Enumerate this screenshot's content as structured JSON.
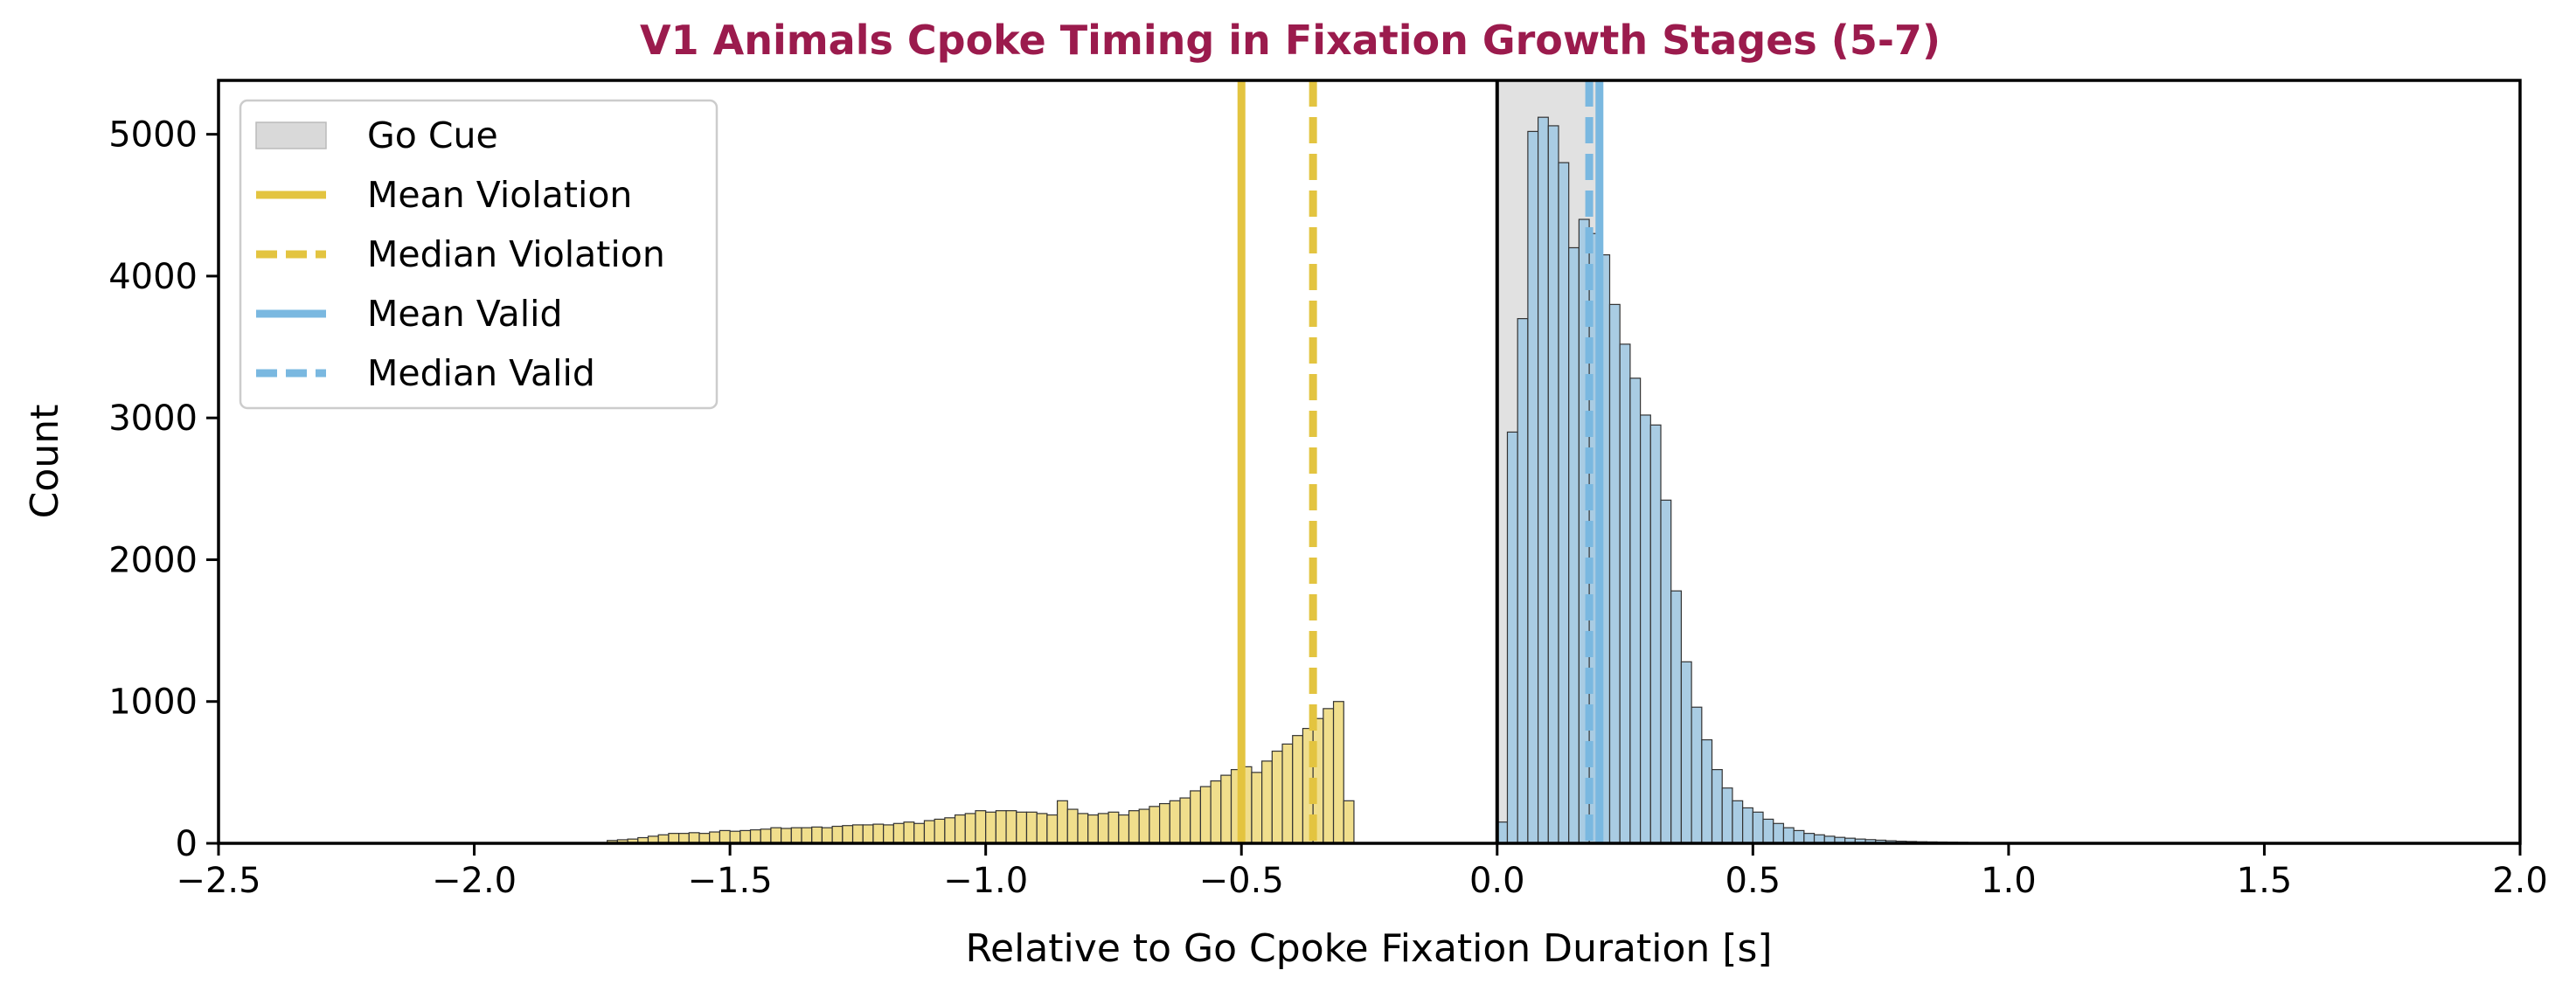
{
  "chart_data": {
    "type": "bar",
    "title": "V1 Animals Cpoke Timing in Fixation Growth Stages (5-7)",
    "xlabel": "Relative to Go Cpoke Fixation Duration [s]",
    "ylabel": "Count",
    "xlim": [
      -2.5,
      2.0
    ],
    "ylim": [
      0,
      5380
    ],
    "xticks": [
      -2.5,
      -2.0,
      -1.5,
      -1.0,
      -0.5,
      0.0,
      0.5,
      1.0,
      1.5,
      2.0
    ],
    "xtick_labels": [
      "−2.5",
      "−2.0",
      "−1.5",
      "−1.0",
      "−0.5",
      "0.0",
      "0.5",
      "1.0",
      "1.5",
      "2.0"
    ],
    "yticks": [
      0,
      1000,
      2000,
      3000,
      4000,
      5000
    ],
    "ytick_labels": [
      "0",
      "1000",
      "2000",
      "3000",
      "4000",
      "5000"
    ],
    "bin_width": 0.02,
    "go_cue": {
      "name": "Go Cue",
      "x0": 0.0,
      "x1": 0.2,
      "color": "#d9d9d9"
    },
    "zero_line": {
      "x": 0.0,
      "color": "#000000"
    },
    "series": [
      {
        "name": "Violation",
        "color": "#f0de8c",
        "bin_start": -1.74,
        "values": [
          20,
          25,
          30,
          40,
          50,
          60,
          70,
          70,
          75,
          70,
          80,
          90,
          85,
          90,
          95,
          100,
          110,
          105,
          110,
          110,
          115,
          110,
          120,
          125,
          130,
          130,
          135,
          130,
          140,
          150,
          140,
          160,
          170,
          180,
          200,
          210,
          230,
          220,
          230,
          230,
          220,
          220,
          210,
          200,
          300,
          240,
          210,
          200,
          210,
          220,
          200,
          230,
          240,
          260,
          280,
          300,
          320,
          370,
          400,
          440,
          480,
          520,
          540,
          500,
          580,
          650,
          700,
          760,
          810,
          880,
          950,
          1000,
          300
        ]
      },
      {
        "name": "Valid",
        "color": "#a9cce3",
        "bin_start": 0.0,
        "values": [
          150,
          2900,
          3700,
          5020,
          5120,
          5060,
          4800,
          4200,
          4400,
          4300,
          4150,
          3800,
          3520,
          3280,
          3020,
          2950,
          2420,
          1780,
          1280,
          960,
          730,
          520,
          390,
          300,
          250,
          220,
          170,
          140,
          110,
          90,
          70,
          60,
          50,
          42,
          36,
          30,
          26,
          22,
          18,
          15,
          13,
          11,
          10,
          9,
          8,
          7,
          6,
          5,
          5,
          4,
          4,
          3,
          3,
          3,
          2,
          2,
          2,
          2,
          2,
          2,
          2,
          2,
          2,
          2,
          1,
          1,
          1,
          1,
          1,
          1,
          1,
          1,
          1,
          1,
          1,
          1,
          1,
          1,
          1,
          1,
          1,
          1,
          1,
          1,
          1,
          1,
          1,
          1,
          1,
          1,
          1,
          1,
          1,
          1,
          1,
          1,
          1,
          1,
          1,
          1
        ]
      }
    ],
    "vlines": [
      {
        "name": "Mean Violation",
        "x": -0.5,
        "style": "solid",
        "color": "#e3c440"
      },
      {
        "name": "Median Violation",
        "x": -0.36,
        "style": "dashed",
        "color": "#e3c440"
      },
      {
        "name": "Mean Valid",
        "x": 0.2,
        "style": "solid",
        "color": "#7ab8e0"
      },
      {
        "name": "Median Valid",
        "x": 0.18,
        "style": "dashed",
        "color": "#7ab8e0"
      }
    ],
    "legend": {
      "position": "top-left",
      "items": [
        {
          "label": "Go Cue",
          "kind": "patch",
          "color": "#d9d9d9"
        },
        {
          "label": "Mean Violation",
          "kind": "solid",
          "color": "#e3c440"
        },
        {
          "label": "Median Violation",
          "kind": "dashed",
          "color": "#e3c440"
        },
        {
          "label": "Mean Valid",
          "kind": "solid",
          "color": "#7ab8e0"
        },
        {
          "label": "Median Valid",
          "kind": "dashed",
          "color": "#7ab8e0"
        }
      ]
    },
    "title_color": "#9b1b4d",
    "grid": false
  }
}
